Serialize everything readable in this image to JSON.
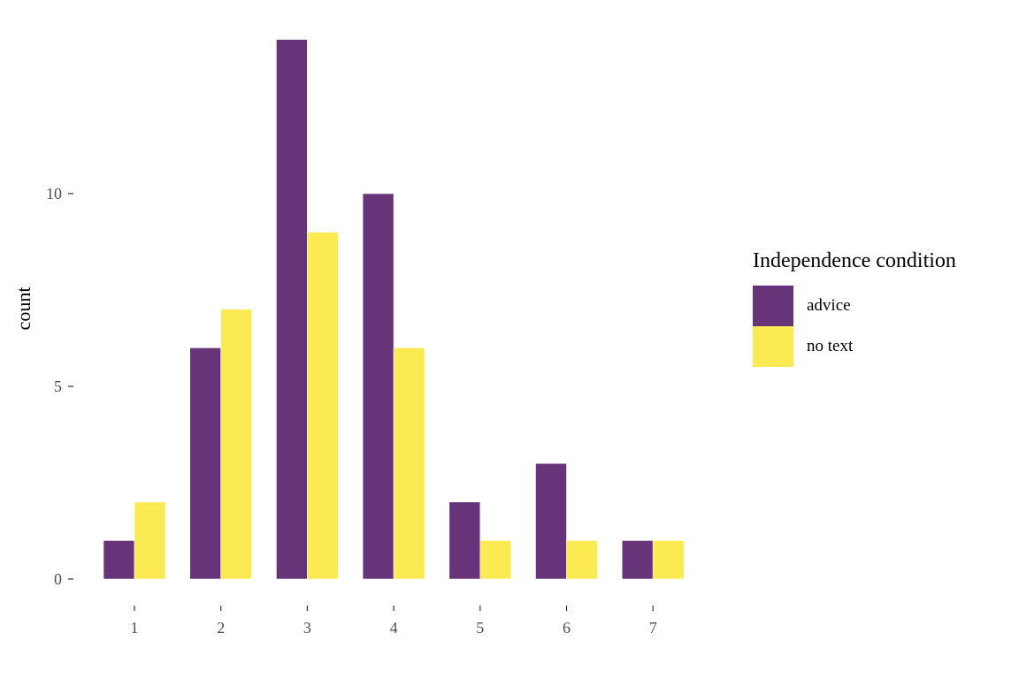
{
  "chart_data": {
    "type": "bar",
    "categories": [
      "1",
      "2",
      "3",
      "4",
      "5",
      "6",
      "7"
    ],
    "series": [
      {
        "name": "advice",
        "color": "#67347A",
        "values": [
          1,
          6,
          14,
          10,
          2,
          3,
          1
        ]
      },
      {
        "name": "no text",
        "color": "#FBEA52",
        "values": [
          2,
          7,
          9,
          6,
          1,
          1,
          1
        ]
      }
    ],
    "ylabel": "count",
    "xlabel": "",
    "ylim": [
      0,
      14
    ],
    "yticks": [
      "0",
      "5",
      "10"
    ],
    "grid": false,
    "legend": {
      "title": "Independence condition",
      "placement": "right"
    }
  }
}
